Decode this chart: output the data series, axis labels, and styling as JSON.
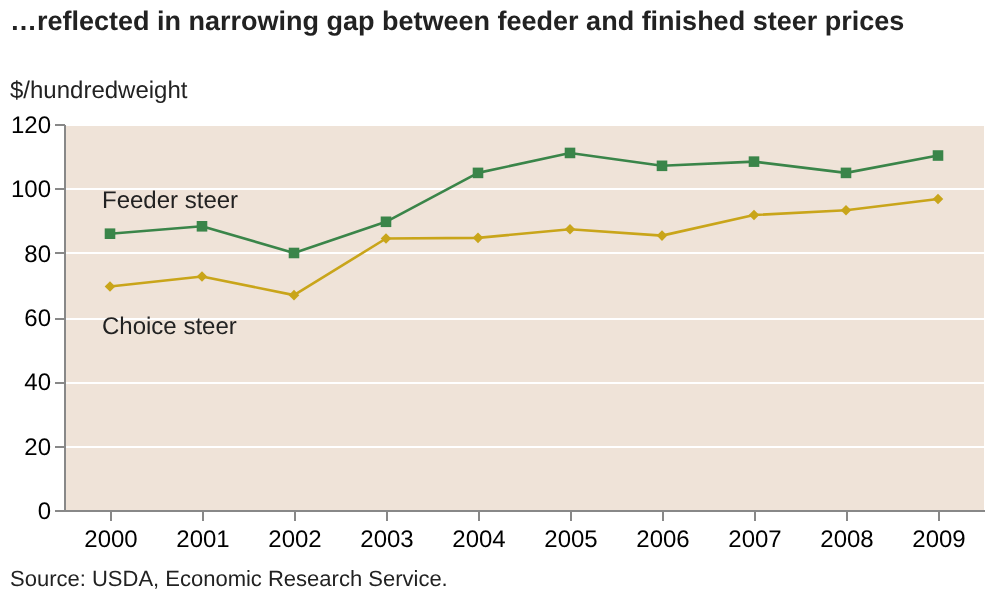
{
  "chart_data": {
    "type": "line",
    "title": "…reflected in narrowing gap between feeder and finished steer prices",
    "ylabel": "$/hundredweight",
    "categories": [
      "2000",
      "2001",
      "2002",
      "2003",
      "2004",
      "2005",
      "2006",
      "2007",
      "2008",
      "2009"
    ],
    "series": [
      {
        "name": "Feeder steer",
        "color": "#3a8549",
        "marker": "square",
        "values": [
          85.9,
          88.2,
          79.9,
          89.6,
          104.8,
          111,
          107,
          108.3,
          104.8,
          110.2
        ]
      },
      {
        "name": "Choice steer",
        "color": "#c9a51a",
        "marker": "diamond",
        "values": [
          69.5,
          72.6,
          66.8,
          84.4,
          84.6,
          87.3,
          85.3,
          91.7,
          93.2,
          96.7
        ]
      }
    ],
    "ylim": [
      0,
      120
    ],
    "yticks": [
      0,
      20,
      40,
      60,
      80,
      100,
      120
    ],
    "grid": "y",
    "legend": false,
    "annotations": [
      "Source: USDA, Economic Research Service."
    ]
  }
}
